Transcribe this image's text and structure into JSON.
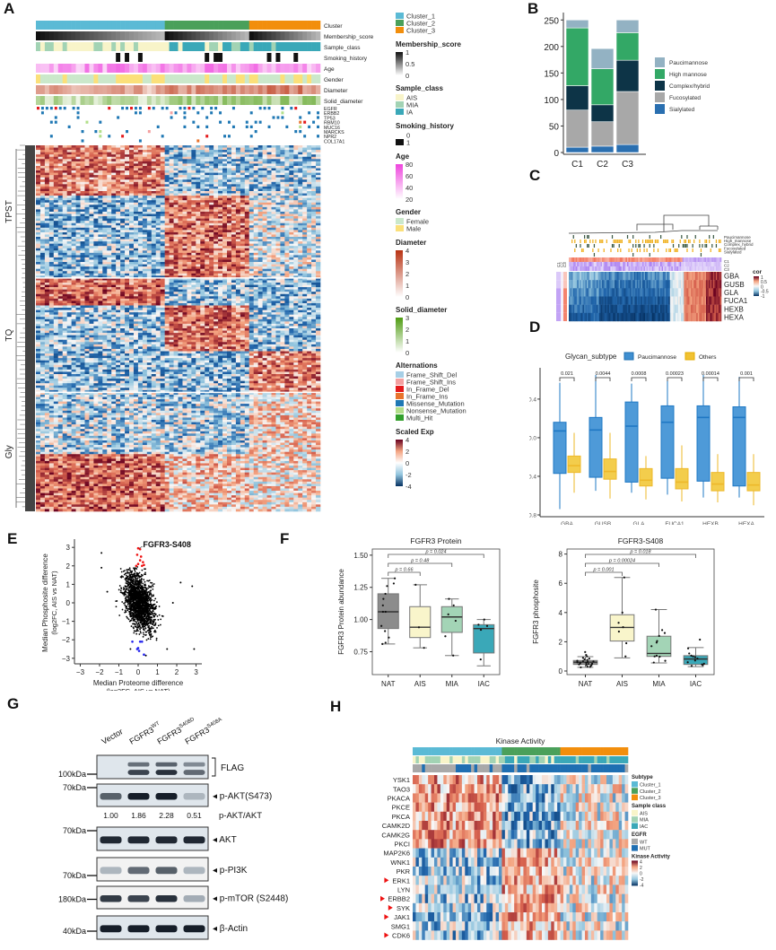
{
  "panels": [
    "A",
    "B",
    "C",
    "D",
    "E",
    "F",
    "G",
    "H"
  ],
  "chart_data": [
    {
      "id": "A",
      "type": "heatmap",
      "annotation_rows": [
        "Cluster",
        "Membership_score",
        "Sample_class",
        "Smoking_history",
        "Age",
        "Gender",
        "Diameter",
        "Solid_diameter"
      ],
      "mutation_genes": [
        "EGFR",
        "ERBB2",
        "TP53",
        "RBM10",
        "MUC16",
        "MARCKS",
        "NPR2",
        "COL17A1"
      ],
      "row_groups": [
        "TPST",
        "TQ",
        "Gly"
      ],
      "legends": [
        {
          "title": "",
          "type": "discrete",
          "items": [
            {
              "label": "Cluster_1",
              "color": "#5bbad5"
            },
            {
              "label": "Cluster_2",
              "color": "#4aa05a"
            },
            {
              "label": "Cluster_3",
              "color": "#f28e0c"
            }
          ]
        },
        {
          "title": "Membership_score",
          "type": "continuous",
          "ticks": [
            "1",
            "0.5",
            "0"
          ],
          "colors": [
            "#111111",
            "#ffffff"
          ]
        },
        {
          "title": "Sample_class",
          "type": "discrete",
          "items": [
            {
              "label": "AIS",
              "color": "#f8f4c9"
            },
            {
              "label": "MIA",
              "color": "#a2d3b4"
            },
            {
              "label": "IA",
              "color": "#3aa8b8"
            }
          ]
        },
        {
          "title": "Smoking_history",
          "type": "discrete",
          "items": [
            {
              "label": "0",
              "color": "#ffffff"
            },
            {
              "label": "1",
              "color": "#111111"
            }
          ]
        },
        {
          "title": "Age",
          "type": "continuous",
          "ticks": [
            "80",
            "60",
            "40",
            "20"
          ],
          "colors": [
            "#ee44dd",
            "#ffffff"
          ]
        },
        {
          "title": "Gender",
          "type": "discrete",
          "items": [
            {
              "label": "Female",
              "color": "#cbe8cb"
            },
            {
              "label": "Male",
              "color": "#fbe07a"
            }
          ]
        },
        {
          "title": "Diameter",
          "type": "continuous",
          "ticks": [
            "4",
            "3",
            "2",
            "1",
            "0"
          ],
          "colors": [
            "#b83212",
            "#ffffff"
          ]
        },
        {
          "title": "Solid_diameter",
          "type": "continuous",
          "ticks": [
            "3",
            "2",
            "1",
            "0"
          ],
          "colors": [
            "#4f9c12",
            "#ffffff"
          ]
        },
        {
          "title": "Alternations",
          "type": "discrete",
          "items": [
            {
              "label": "Frame_Shift_Del",
              "color": "#a6cfe6"
            },
            {
              "label": "Frame_Shift_Ins",
              "color": "#f4a0a0"
            },
            {
              "label": "In_Frame_Del",
              "color": "#e41a1c"
            },
            {
              "label": "In_Frame_Ins",
              "color": "#e8732c"
            },
            {
              "label": "Missense_Mutation",
              "color": "#1f78b4"
            },
            {
              "label": "Nonsense_Mutation",
              "color": "#b2df8a"
            },
            {
              "label": "Multi_Hit",
              "color": "#33a02c"
            }
          ]
        },
        {
          "title": "Scaled Exp",
          "type": "continuous",
          "ticks": [
            "4",
            "2",
            "0",
            "-2",
            "-4"
          ],
          "colors": [
            "#67001f",
            "#f4a582",
            "#ffffff",
            "#92c5de",
            "#053061"
          ]
        }
      ],
      "cluster_fractions": [
        0.45,
        0.3,
        0.25
      ]
    },
    {
      "id": "B",
      "type": "bar",
      "stacked": true,
      "categories": [
        "C1",
        "C2",
        "C3"
      ],
      "series": [
        {
          "name": "Sialylated",
          "color": "#2a6fb0",
          "values": [
            10,
            12,
            15
          ]
        },
        {
          "name": "Fucosylated",
          "color": "#a8a8a8",
          "values": [
            70,
            46,
            100
          ]
        },
        {
          "name": "Complex/hybrid",
          "color": "#0d3447",
          "values": [
            46,
            32,
            59
          ]
        },
        {
          "name": "High mannose",
          "color": "#33a866",
          "values": [
            109,
            68,
            52
          ]
        },
        {
          "name": "Paucimannose",
          "color": "#93b2c3",
          "values": [
            15,
            38,
            24
          ]
        }
      ],
      "legend_order": [
        "Paucimannose",
        "High mannose",
        "Complex/hybrid",
        "Fucosylated",
        "Sialylated"
      ],
      "yticks": [
        0,
        50,
        100,
        150,
        200,
        250
      ],
      "ylim": [
        0,
        260
      ],
      "legend": "right"
    },
    {
      "id": "C",
      "type": "heatmap",
      "rows": [
        "GBA",
        "GUSB",
        "GLA",
        "FUCA1",
        "HEXB",
        "HEXA"
      ],
      "annotation_rows": [
        "Paucimannose",
        "High_mannose",
        "Complex_hybrid",
        "Fucosylated",
        "Sialylated",
        "C1",
        "C2",
        "C3"
      ],
      "side_annotation": [
        "C1",
        "C2",
        "C3"
      ],
      "legend": {
        "title": "cor",
        "ticks": [
          "1",
          "0.5",
          "0",
          "-0.5",
          "-1"
        ]
      }
    },
    {
      "id": "D",
      "type": "box",
      "title": "",
      "legend_title": "Glycan_subtype",
      "legend": [
        {
          "label": "Paucimannose",
          "color": "#3f8fd1"
        },
        {
          "label": "Others",
          "color": "#f1c232"
        }
      ],
      "categories": [
        "GBA",
        "GUSB",
        "GLA",
        "FUCA1",
        "HEXB",
        "HEXA"
      ],
      "pvalues": [
        "0.021",
        "0.0044",
        "0.0008",
        "0.00023",
        "0.00014",
        "0.001"
      ],
      "ylabel": "Spearman Correlation",
      "yticks": [
        0.4,
        0.0,
        -0.4,
        -0.8
      ],
      "ylim": [
        -0.8,
        0.65
      ],
      "series": [
        {
          "name": "Paucimannose",
          "boxes": [
            {
              "min": -0.74,
              "q1": -0.37,
              "median": 0.07,
              "q3": 0.16,
              "max": 0.57
            },
            {
              "min": -0.55,
              "q1": -0.41,
              "median": 0.08,
              "q3": 0.21,
              "max": 0.65
            },
            {
              "min": -0.57,
              "q1": -0.46,
              "median": 0.12,
              "q3": 0.37,
              "max": 0.56
            },
            {
              "min": -0.59,
              "q1": -0.42,
              "median": 0.16,
              "q3": 0.33,
              "max": 0.59
            },
            {
              "min": -0.62,
              "q1": -0.45,
              "median": 0.21,
              "q3": 0.33,
              "max": 0.65
            },
            {
              "min": -0.62,
              "q1": -0.5,
              "median": 0.21,
              "q3": 0.32,
              "max": 0.63
            }
          ]
        },
        {
          "name": "Others",
          "boxes": [
            {
              "min": -0.57,
              "q1": -0.36,
              "median": -0.29,
              "q3": -0.19,
              "max": 0.05
            },
            {
              "min": -0.63,
              "q1": -0.43,
              "median": -0.35,
              "q3": -0.22,
              "max": 0.05
            },
            {
              "min": -0.64,
              "q1": -0.5,
              "median": -0.44,
              "q3": -0.32,
              "max": -0.19
            },
            {
              "min": -0.66,
              "q1": -0.53,
              "median": -0.46,
              "q3": -0.32,
              "max": -0.08
            },
            {
              "min": -0.67,
              "q1": -0.55,
              "median": -0.48,
              "q3": -0.36,
              "max": -0.17
            },
            {
              "min": -0.7,
              "q1": -0.55,
              "median": -0.49,
              "q3": -0.36,
              "max": -0.17
            }
          ]
        }
      ]
    },
    {
      "id": "E",
      "type": "scatter",
      "annotation": "FGFR3-S408",
      "xlabel": "Median Proteome difference\n(log2FC, AIS vs NAT)",
      "ylabel": "Median Phosphosite difference\n(log2FC, AIS vs NAT)",
      "xticks": [
        -3,
        -2,
        -1,
        0,
        1,
        2,
        3
      ],
      "yticks": [
        -3,
        -2,
        -1,
        0,
        1,
        2,
        3
      ],
      "xlim": [
        -3.3,
        3.3
      ],
      "ylim": [
        -3.3,
        3.3
      ],
      "highlight_colors": {
        "up": "#ee1111",
        "down": "#2222ee",
        "other": "#000000"
      },
      "outliers": [
        [
          -1.9,
          2.7
        ],
        [
          -1.9,
          1.9
        ],
        [
          -1.6,
          0.6
        ],
        [
          2.2,
          1.1
        ],
        [
          2.8,
          0.9
        ],
        [
          1.8,
          0.0
        ],
        [
          1.5,
          -2.5
        ],
        [
          2.9,
          -2.5
        ],
        [
          -0.4,
          -2.5
        ],
        [
          0.4,
          -2.85
        ]
      ],
      "up_points": [
        [
          0.0,
          2.95
        ],
        [
          0.1,
          2.9
        ],
        [
          -0.05,
          2.6
        ],
        [
          0.15,
          2.5
        ],
        [
          0.1,
          2.3
        ],
        [
          0.25,
          2.2
        ],
        [
          0.0,
          2.1
        ],
        [
          0.3,
          2.05
        ],
        [
          -0.1,
          2.0
        ],
        [
          0.2,
          2.0
        ]
      ],
      "down_points": [
        [
          -0.3,
          -2.1
        ],
        [
          0.1,
          -2.1
        ],
        [
          0.2,
          -2.1
        ],
        [
          0.0,
          -2.45
        ],
        [
          -0.05,
          -2.5
        ],
        [
          0.05,
          -2.6
        ],
        [
          0.3,
          -2.8
        ]
      ]
    },
    {
      "id": "F1",
      "type": "box",
      "title": "FGFR3 Protein",
      "ylabel": "FGFR3 Protein abundance",
      "categories": [
        "NAT",
        "AIS",
        "MIA",
        "IAC"
      ],
      "colors": [
        "#8c8c8c",
        "#f9f5cb",
        "#a3d4b6",
        "#3aa8b8"
      ],
      "yticks": [
        0.75,
        1.0,
        1.25,
        1.5
      ],
      "ytick_labels": [
        "0.75",
        "1.00",
        "1.25",
        "1.50"
      ],
      "ylim": [
        0.6,
        1.52
      ],
      "boxes": [
        {
          "min": 0.81,
          "q1": 0.93,
          "median": 1.06,
          "q3": 1.2,
          "max": 1.32
        },
        {
          "min": 0.78,
          "q1": 0.86,
          "median": 0.94,
          "q3": 1.1,
          "max": 1.27
        },
        {
          "min": 0.72,
          "q1": 0.9,
          "median": 1.02,
          "q3": 1.1,
          "max": 1.16
        },
        {
          "min": 0.64,
          "q1": 0.74,
          "median": 0.93,
          "q3": 0.96,
          "max": 1.0
        }
      ],
      "points": [
        [
          1.32,
          1.28,
          1.26,
          1.2,
          1.16,
          1.11,
          1.06,
          1.06,
          0.95,
          0.91,
          0.86,
          0.82,
          0.81
        ],
        [
          1.27,
          0.94,
          0.78
        ],
        [
          1.16,
          1.11,
          1.04,
          0.99,
          0.87,
          0.72
        ],
        [
          1.0,
          0.96,
          0.95,
          0.92,
          0.69
        ]
      ],
      "comparisons": [
        {
          "label": "p = 0.66",
          "from": 0,
          "to": 1
        },
        {
          "label": "p = 0.48",
          "from": 0,
          "to": 2
        },
        {
          "label": "p = 0.024",
          "from": 0,
          "to": 3
        }
      ]
    },
    {
      "id": "F2",
      "type": "box",
      "title": "FGFR3-S408",
      "ylabel": "FGFR3 phosphosite",
      "categories": [
        "NAT",
        "AIS",
        "MIA",
        "IAC"
      ],
      "colors": [
        "#8c8c8c",
        "#f9f5cb",
        "#a3d4b6",
        "#3aa8b8"
      ],
      "yticks": [
        0,
        2,
        4,
        6,
        8
      ],
      "ytick_labels": [
        "0",
        "2",
        "4",
        "6",
        "8"
      ],
      "ylim": [
        0,
        8.1
      ],
      "boxes": [
        {
          "min": 0.25,
          "q1": 0.45,
          "median": 0.6,
          "q3": 0.72,
          "max": 0.98
        },
        {
          "min": 0.9,
          "q1": 2.05,
          "median": 2.98,
          "q3": 3.85,
          "max": 6.4
        },
        {
          "min": 0.55,
          "q1": 1.0,
          "median": 1.2,
          "q3": 2.38,
          "max": 4.2
        },
        {
          "min": 0.3,
          "q1": 0.45,
          "median": 0.82,
          "q3": 1.05,
          "max": 1.6
        }
      ],
      "points": [
        [
          1.3,
          1.1,
          1.0,
          0.9,
          0.85,
          0.8,
          0.75,
          0.7,
          0.68,
          0.65,
          0.62,
          0.6,
          0.58,
          0.55,
          0.52,
          0.5,
          0.48,
          0.45,
          0.42,
          0.4,
          0.35,
          0.3,
          0.28,
          0.25
        ],
        [
          6.4,
          4.0,
          3.3,
          3.0,
          2.7,
          1.9,
          1.0
        ],
        [
          4.2,
          2.8,
          2.6,
          2.4,
          2.05,
          1.95,
          1.7,
          1.05,
          1.0,
          0.98,
          0.7,
          0.58
        ],
        [
          2.15,
          1.55,
          1.2,
          1.05,
          1.0,
          0.95,
          0.85,
          0.72,
          0.6,
          0.5,
          0.45,
          0.4,
          0.35
        ]
      ],
      "comparisons": [
        {
          "label": "p = 0.001",
          "from": 0,
          "to": 1
        },
        {
          "label": "p = 0.00024",
          "from": 0,
          "to": 2
        },
        {
          "label": "p = 0.018",
          "from": 0,
          "to": 3
        }
      ]
    },
    {
      "id": "H",
      "type": "heatmap",
      "title": "Kinase Activity",
      "rows": [
        "YSK1",
        "TAO3",
        "PKACA",
        "PKCE",
        "PKCA",
        "CAMK2D",
        "CAMK2G",
        "PKCI",
        "MAP2K6",
        "WNK1",
        "PKR",
        "ERK1",
        "LYN",
        "ERBB2",
        "SYK",
        "JAK1",
        "SMG1",
        "CDK6"
      ],
      "marked_rows": [
        "ERK1",
        "ERBB2",
        "SYK",
        "JAK1",
        "CDK6"
      ],
      "legends": [
        {
          "title": "Subtype",
          "items": [
            {
              "label": "Cluster_1",
              "color": "#5bbad5"
            },
            {
              "label": "Cluster_2",
              "color": "#4aa05a"
            },
            {
              "label": "Cluster_3",
              "color": "#f28e0c"
            }
          ]
        },
        {
          "title": "Sample class",
          "items": [
            {
              "label": "AIS",
              "color": "#f8f4c9"
            },
            {
              "label": "MIA",
              "color": "#a2d3b4"
            },
            {
              "label": "IAC",
              "color": "#3aa8b8"
            }
          ]
        },
        {
          "title": "EGFR",
          "items": [
            {
              "label": "WT",
              "color": "#a9a9a9"
            },
            {
              "label": "MUT",
              "color": "#1f6fb2"
            }
          ]
        },
        {
          "title": "Kinase Activity",
          "ticks": [
            "4",
            "2",
            "0",
            "-2",
            "-4"
          ]
        }
      ],
      "cluster_fractions": [
        0.41,
        0.27,
        0.32
      ]
    }
  ],
  "blot": {
    "lanes": [
      "Vector",
      "FGFR3",
      "FGFR3",
      "FGFR3"
    ],
    "lane_sup": [
      "",
      "WT",
      "S408D",
      "S408A"
    ],
    "rows": [
      {
        "marker": "100kDa",
        "label": "FLAG",
        "bracket": true,
        "intensity": [
          0.05,
          0.75,
          0.85,
          0.55
        ]
      },
      {
        "marker": "70kDa",
        "label": "p-AKT(S473)",
        "bracket": false,
        "intensity": [
          0.6,
          0.95,
          0.95,
          0.15
        ]
      },
      {
        "marker": "70kDa",
        "label": "AKT",
        "bracket": false,
        "intensity": [
          0.9,
          0.9,
          0.9,
          0.9
        ]
      },
      {
        "marker": "70kDa",
        "label": "p-PI3K",
        "bracket": false,
        "intensity": [
          0.15,
          0.55,
          0.6,
          0.15
        ]
      },
      {
        "marker": "180kDa",
        "label": "p-mTOR (S2448)",
        "bracket": false,
        "intensity": [
          0.8,
          0.75,
          0.85,
          0.2
        ]
      },
      {
        "marker": "40kDa",
        "label": "β-Actin",
        "bracket": false,
        "intensity": [
          0.95,
          0.95,
          0.95,
          0.95
        ]
      }
    ],
    "ratio_label": "p-AKT/AKT",
    "ratios": [
      "1.00",
      "1.86",
      "2.28",
      "0.51"
    ]
  }
}
